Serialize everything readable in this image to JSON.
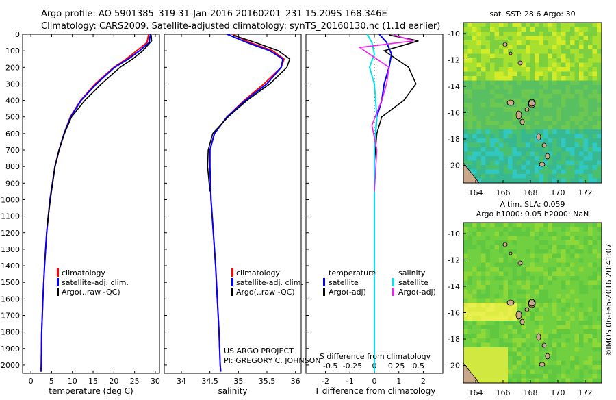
{
  "header": {
    "line1": "Argo profile: AO 5901385_319 31-Jan-2016 20160201_231 15.209S 168.346E",
    "line2": "Climatology: CARS2009. Satellite-adjusted climatology: synTS_20160130.nc (1.1d earlier)"
  },
  "map_top": {
    "title": "sat. SST: 28.6 Argo: 30"
  },
  "map_bottom": {
    "title1": "Altim. SLA: 0.059",
    "title2": "Argo h1000: 0.05 h2000: NaN"
  },
  "credit": {
    "project": "US ARGO PROJECT",
    "pi": "PI: GREGORY C. JOHNSON"
  },
  "timestamp": "©IMOS 06-Feb-2016 20:41:07",
  "legend_temp": {
    "climatology": "climatology",
    "satellite": "satellite-adj. clim.",
    "argo": "Argo(..raw -QC)"
  },
  "legend_sal": {
    "climatology": "climatology",
    "satellite": "satellite-adj. clim.",
    "argo": "Argo(..raw -QC)"
  },
  "legend_diff": {
    "temp_head": "temperature",
    "temp_sat": "satellite",
    "temp_argo": "Argo(-adj)",
    "sal_head": "salinity",
    "sal_sat": "satellite",
    "sal_argo": "Argo(-adj)"
  },
  "colors": {
    "climatology": "#ff0000",
    "satellite": "#0000ff",
    "argo": "#000000",
    "sal_sat": "#00e5ee",
    "sal_argo": "#ee22ee"
  },
  "chart_data": [
    {
      "type": "line",
      "xlabel": "temperature (deg C)",
      "ylabel": "",
      "xlim": [
        -2,
        31
      ],
      "ylim": [
        2050,
        0
      ],
      "xticks": [
        0,
        5,
        10,
        15,
        20,
        25,
        30
      ],
      "yticks": [
        0,
        100,
        200,
        300,
        400,
        500,
        600,
        700,
        800,
        900,
        1000,
        1100,
        1200,
        1300,
        1400,
        1500,
        1600,
        1700,
        1800,
        1900,
        2000
      ],
      "series": [
        {
          "name": "climatology",
          "x": [
            28.4,
            28.0,
            25.5,
            23.0,
            20.0,
            15.5,
            12.0,
            9.5,
            8.0,
            6.8,
            5.8,
            4.6,
            3.8,
            3.3,
            2.9,
            2.6,
            2.5,
            2.45
          ],
          "y": [
            0,
            50,
            100,
            150,
            200,
            300,
            400,
            500,
            600,
            700,
            800,
            1000,
            1200,
            1400,
            1600,
            1800,
            2000,
            2040
          ]
        },
        {
          "name": "satellite-adj. clim.",
          "x": [
            28.8,
            28.5,
            26.2,
            23.5,
            20.2,
            15.8,
            12.1,
            9.6,
            8.0,
            6.8,
            5.8,
            4.6,
            3.8,
            3.3,
            2.9,
            2.6,
            2.5,
            2.45
          ],
          "y": [
            0,
            50,
            100,
            150,
            200,
            300,
            400,
            500,
            600,
            700,
            800,
            1000,
            1200,
            1400,
            1600,
            1800,
            2000,
            2040
          ]
        },
        {
          "name": "Argo(..raw -QC)",
          "x": [
            29.0,
            29.1,
            27.0,
            24.5,
            21.5,
            17.0,
            13.0,
            9.8,
            8.1,
            6.8,
            5.8,
            4.7,
            3.9
          ],
          "y": [
            5,
            40,
            100,
            150,
            200,
            300,
            400,
            500,
            600,
            700,
            800,
            1000,
            1160
          ]
        }
      ]
    },
    {
      "type": "line",
      "xlabel": "salinity",
      "ylabel": "",
      "xlim": [
        33.7,
        36.1
      ],
      "ylim": [
        2050,
        0
      ],
      "xticks": [
        34,
        34.5,
        35,
        35.5,
        36
      ],
      "series": [
        {
          "name": "climatology",
          "x": [
            34.9,
            35.2,
            35.6,
            35.8,
            35.75,
            35.45,
            35.1,
            34.8,
            34.58,
            34.5,
            34.5,
            34.52,
            34.56,
            34.6,
            34.63,
            34.66,
            34.68,
            34.69
          ],
          "y": [
            0,
            50,
            100,
            150,
            200,
            300,
            400,
            500,
            600,
            700,
            800,
            1000,
            1200,
            1400,
            1600,
            1800,
            2000,
            2040
          ]
        },
        {
          "name": "satellite-adj. clim.",
          "x": [
            34.8,
            35.15,
            35.55,
            35.78,
            35.75,
            35.5,
            35.12,
            34.8,
            34.58,
            34.5,
            34.5,
            34.52,
            34.56,
            34.6,
            34.63,
            34.66,
            34.68,
            34.69
          ],
          "y": [
            0,
            50,
            100,
            150,
            200,
            300,
            400,
            500,
            600,
            700,
            800,
            1000,
            1200,
            1400,
            1600,
            1800,
            2000,
            2040
          ]
        },
        {
          "name": "Argo(..raw -QC)",
          "x": [
            34.9,
            35.3,
            35.7,
            35.9,
            35.85,
            35.55,
            35.15,
            34.82,
            34.55,
            34.47,
            34.46,
            34.5
          ],
          "y": [
            5,
            50,
            100,
            150,
            200,
            300,
            400,
            500,
            600,
            700,
            800,
            950
          ]
        }
      ]
    },
    {
      "type": "line",
      "xlabel": "T difference from climatology",
      "ylabel": "",
      "xlim": [
        -2.8,
        2.8
      ],
      "ylim": [
        2050,
        0
      ],
      "xticks": [
        -2,
        -1,
        0,
        1,
        2
      ],
      "top_axis_label": "S difference from climatology",
      "top_ticks": [
        "-0.5",
        "-0.25",
        "0",
        "0.25",
        "0.5"
      ],
      "series": [
        {
          "name": "temperature satellite",
          "x": [
            0.2,
            0.5,
            0.7,
            0.6,
            0.4,
            0.3,
            0.1,
            0.0,
            0.0,
            0.0
          ],
          "y": [
            0,
            50,
            120,
            200,
            300,
            400,
            500,
            700,
            1000,
            2040
          ]
        },
        {
          "name": "temperature Argo(-adj)",
          "x": [
            0.6,
            1.8,
            0.4,
            1.4,
            1.7,
            1.2,
            0.3,
            0.1,
            0.0
          ],
          "y": [
            5,
            40,
            100,
            200,
            300,
            400,
            500,
            600,
            780
          ]
        },
        {
          "name": "salinity satellite",
          "x": [
            -0.3,
            -0.1,
            0.0,
            -0.2,
            0.0,
            0.1,
            0.0,
            0.0
          ],
          "y": [
            0,
            50,
            120,
            200,
            300,
            500,
            700,
            2040
          ]
        },
        {
          "name": "salinity Argo(-adj)",
          "x": [
            0.8,
            1.6,
            -0.6,
            0.6,
            0.5,
            0.3,
            -0.1,
            0.1,
            0.0
          ],
          "y": [
            5,
            40,
            80,
            200,
            300,
            400,
            550,
            700,
            950
          ]
        }
      ]
    }
  ],
  "maps": {
    "top": {
      "xticks": [
        "164",
        "166",
        "168",
        "170",
        "172"
      ],
      "yticks": [
        "-10",
        "-12",
        "-14",
        "-16",
        "-18",
        "-20"
      ]
    },
    "bottom": {
      "xticks": [
        "164",
        "166",
        "168",
        "170",
        "172"
      ],
      "yticks": [
        "-10",
        "-12",
        "-14",
        "-16",
        "-18",
        "-20"
      ]
    }
  }
}
